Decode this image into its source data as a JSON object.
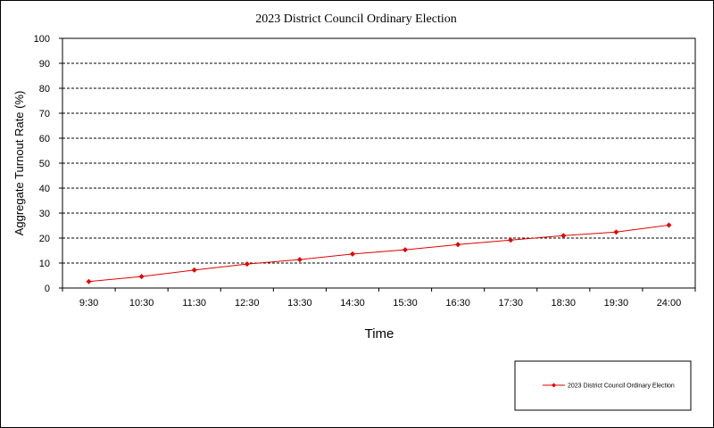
{
  "chart_data": {
    "type": "line",
    "title": "2023 District Council Ordinary Election",
    "xlabel": "Time",
    "ylabel": "Aggregate  Turnout  Rate  (%)",
    "categories": [
      "9:30",
      "10:30",
      "11:30",
      "12:30",
      "13:30",
      "14:30",
      "15:30",
      "16:30",
      "17:30",
      "18:30",
      "19:30",
      "24:00"
    ],
    "series": [
      {
        "name": "2023 District Council Ordinary Election",
        "values": [
          2.6,
          4.6,
          7.2,
          9.6,
          11.4,
          13.6,
          15.3,
          17.4,
          19.2,
          21.0,
          22.4,
          25.2
        ],
        "color": "#e00000",
        "marker": "diamond"
      }
    ],
    "ylim": [
      0,
      100
    ],
    "yticks": [
      0,
      10,
      20,
      30,
      40,
      50,
      60,
      70,
      80,
      90,
      100
    ],
    "grid": "horizontal-dashed",
    "legend_position": "bottom-right"
  }
}
